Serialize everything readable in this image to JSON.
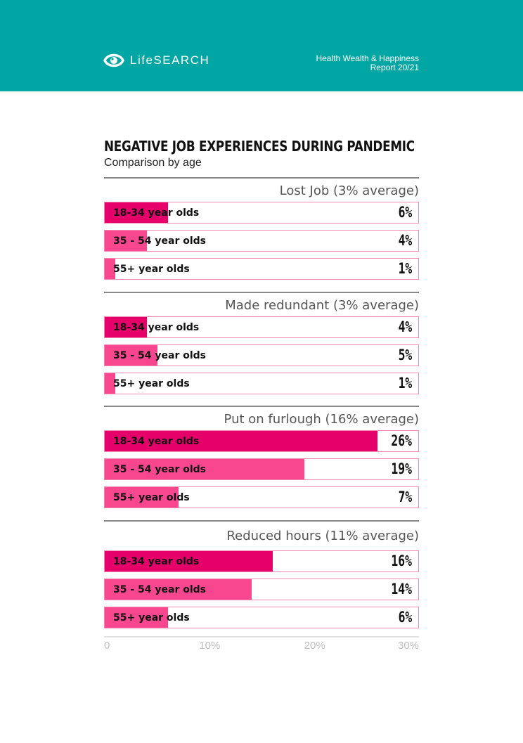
{
  "header": {
    "brand": "LifeSEARCH",
    "report_line1": "Health Wealth & Happiness",
    "report_line2": "Report 20/21",
    "background_color": "#00a6a3"
  },
  "chart_data": {
    "type": "bar",
    "orientation": "horizontal",
    "title": "NEGATIVE JOB EXPERIENCES DURING PANDEMIC",
    "subtitle": "Comparison by age",
    "xlim": [
      0,
      30
    ],
    "ticks": [
      "0",
      "10%",
      "20%",
      "30%"
    ],
    "colors": {
      "18-34": "#e5006a",
      "35-54": "#f8478f",
      "55+": "#f8478f",
      "border": "#f08ab2"
    },
    "groups": [
      {
        "title": "Lost Job (3% average)",
        "bars": [
          {
            "label": "18-34 year olds",
            "value": 6,
            "value_label": "6%"
          },
          {
            "label": "35 - 54 year olds",
            "value": 4,
            "value_label": "4%"
          },
          {
            "label": "55+ year olds",
            "value": 1,
            "value_label": "1%"
          }
        ]
      },
      {
        "title": "Made redundant (3% average)",
        "bars": [
          {
            "label": "18-34 year olds",
            "value": 4,
            "value_label": "4%"
          },
          {
            "label": "35 - 54 year olds",
            "value": 5,
            "value_label": "5%"
          },
          {
            "label": "55+ year olds",
            "value": 1,
            "value_label": "1%"
          }
        ]
      },
      {
        "title": "Put on furlough (16% average)",
        "bars": [
          {
            "label": "18-34 year olds",
            "value": 26,
            "value_label": "26%"
          },
          {
            "label": "35 - 54 year olds",
            "value": 19,
            "value_label": "19%"
          },
          {
            "label": "55+ year olds",
            "value": 7,
            "value_label": "7%"
          }
        ]
      },
      {
        "title": "Reduced hours (11% average)",
        "bars": [
          {
            "label": "18-34 year olds",
            "value": 16,
            "value_label": "16%"
          },
          {
            "label": "35 - 54 year olds",
            "value": 14,
            "value_label": "14%"
          },
          {
            "label": "55+ year olds",
            "value": 6,
            "value_label": "6%"
          }
        ]
      }
    ]
  }
}
